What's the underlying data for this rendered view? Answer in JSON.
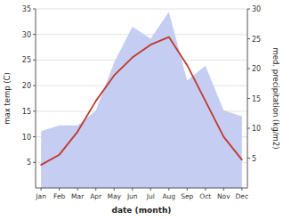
{
  "chart_data": {
    "type": "line",
    "categories": [
      "Jan",
      "Feb",
      "Mar",
      "Apr",
      "May",
      "Jun",
      "Jul",
      "Aug",
      "Sep",
      "Oct",
      "Nov",
      "Dec"
    ],
    "xlabel": "date (month)",
    "ylabel": "max temp (C)",
    "y2label": "med. precipitation (kg/m2)",
    "series": [
      {
        "type": "area",
        "axis": "y2",
        "color": "#c5cdf2",
        "values": [
          9.5,
          10.5,
          10.5,
          13.0,
          21.0,
          27.0,
          25.0,
          29.5,
          18.0,
          20.5,
          13.0,
          12.0
        ]
      },
      {
        "type": "line",
        "color": "#c0392b",
        "values": [
          4.5,
          6.5,
          11.0,
          17.0,
          22.0,
          25.5,
          28.0,
          29.5,
          24.0,
          17.0,
          10.0,
          5.5
        ]
      }
    ],
    "ylim": [
      0,
      35
    ],
    "yticks": [
      5,
      10,
      15,
      20,
      25,
      30,
      35
    ],
    "y2lim": [
      0,
      30
    ],
    "y2ticks": [
      5,
      10,
      15,
      20,
      25,
      30
    ],
    "grid": true
  }
}
